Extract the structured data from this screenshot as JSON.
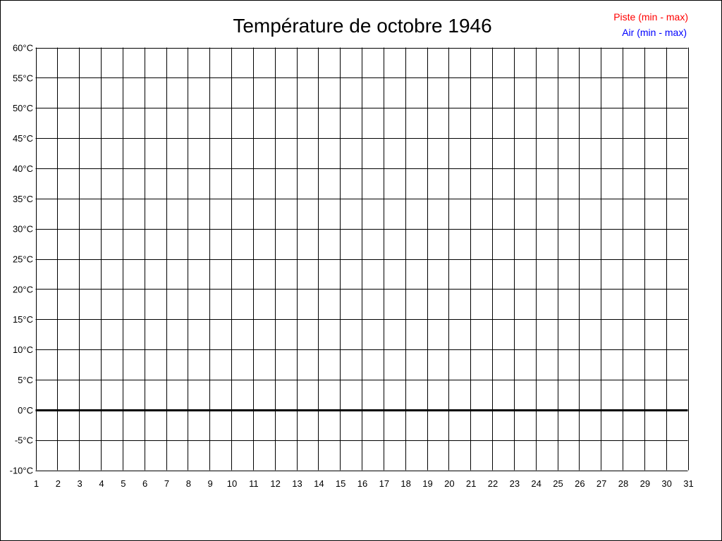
{
  "chart_data": {
    "type": "line",
    "title": "Température de octobre 1946",
    "xlabel": "",
    "ylabel": "",
    "x_ticks": [
      "1",
      "2",
      "3",
      "4",
      "5",
      "6",
      "7",
      "8",
      "9",
      "10",
      "11",
      "12",
      "13",
      "14",
      "15",
      "16",
      "17",
      "18",
      "19",
      "20",
      "21",
      "22",
      "23",
      "24",
      "25",
      "26",
      "27",
      "28",
      "29",
      "30",
      "31"
    ],
    "y_ticks": [
      "60°C",
      "55°C",
      "50°C",
      "45°C",
      "40°C",
      "35°C",
      "30°C",
      "25°C",
      "20°C",
      "15°C",
      "10°C",
      "5°C",
      "0°C",
      "-5°C",
      "-10°C"
    ],
    "xlim": [
      1,
      31
    ],
    "ylim": [
      -10,
      60
    ],
    "y_step": 5,
    "grid": true,
    "zero_line": true,
    "legend_position": "top-right",
    "series": [
      {
        "name": "Piste (min - max)",
        "color": "#ff0000",
        "values": []
      },
      {
        "name": "Air (min - max)",
        "color": "#0000ff",
        "values": []
      }
    ]
  }
}
